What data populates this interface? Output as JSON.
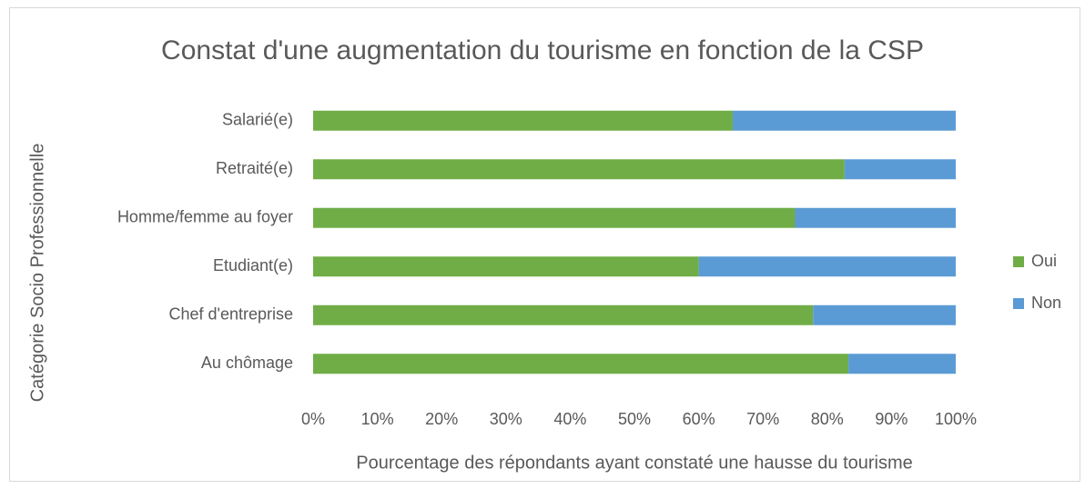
{
  "chart_data": {
    "type": "stacked_barh",
    "title": "Constat d'une augmentation du tourisme en fonction de la CSP",
    "x_label": "Pourcentage des répondants ayant constaté une hausse du tourisme",
    "y_label": "Catégorie Socio Professionnelle",
    "categories": [
      "Salarié(e)",
      "Retraité(e)",
      "Homme/femme au foyer",
      "Etudiant(e)",
      "Chef d'entreprise",
      "Au chômage"
    ],
    "series": [
      {
        "name": "Oui",
        "color": "#70ad47",
        "values": [
          65.3,
          82.7,
          75,
          60,
          77.8,
          83.3
        ]
      },
      {
        "name": "Non",
        "color": "#5b9bd5",
        "values": [
          34.7,
          17.3,
          25,
          40,
          22.2,
          16.7
        ]
      }
    ],
    "xlim": [
      0,
      100
    ],
    "xticks": [
      {
        "value": 0,
        "label": "0%"
      },
      {
        "value": 10,
        "label": "10%"
      },
      {
        "value": 20,
        "label": "20%"
      },
      {
        "value": 30,
        "label": "30%"
      },
      {
        "value": 40,
        "label": "40%"
      },
      {
        "value": 50,
        "label": "50%"
      },
      {
        "value": 60,
        "label": "60%"
      },
      {
        "value": 70,
        "label": "70%"
      },
      {
        "value": 80,
        "label": "80%"
      },
      {
        "value": 90,
        "label": "90%"
      },
      {
        "value": 100,
        "label": "100%"
      }
    ],
    "legend": "right"
  }
}
